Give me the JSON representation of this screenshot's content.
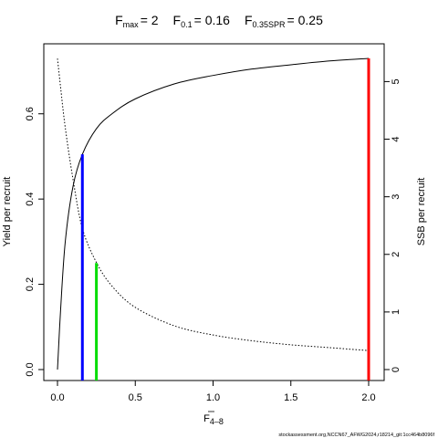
{
  "chart_data": {
    "type": "line",
    "title": {
      "fmax_sym": "F",
      "fmax_sub": "max",
      "fmax_val": "= 2",
      "f01_sym": "F",
      "f01_sub": "0.1",
      "f01_val": "= 0.16",
      "fspr_sym": "F",
      "fspr_sub": "0.35SPR",
      "fspr_val": "= 0.25"
    },
    "xlabel": {
      "main": "F",
      "sub": "4–8"
    },
    "ylabel_left": "Yield per recruit",
    "ylabel_right": "SSB per recruit",
    "xlim": [
      0,
      2
    ],
    "ylim_left": [
      0,
      0.73
    ],
    "ylim_right": [
      0,
      5.45
    ],
    "x_ticks": [
      "0.0",
      "0.5",
      "1.0",
      "1.5",
      "2.0"
    ],
    "y_ticks_left": [
      "0.0",
      "0.2",
      "0.4",
      "0.6"
    ],
    "y_ticks_right": [
      "0",
      "1",
      "2",
      "3",
      "4",
      "5"
    ],
    "series": [
      {
        "axis": "left",
        "style": "solid",
        "color": "#000000",
        "x": [
          0,
          0.02,
          0.05,
          0.1,
          0.16,
          0.25,
          0.35,
          0.5,
          0.75,
          1.0,
          1.25,
          1.5,
          1.75,
          2.0
        ],
        "y": [
          0.0,
          0.14,
          0.3,
          0.43,
          0.505,
          0.565,
          0.6,
          0.635,
          0.67,
          0.69,
          0.705,
          0.715,
          0.724,
          0.73
        ]
      },
      {
        "axis": "right",
        "style": "dotted",
        "color": "#000000",
        "x": [
          0,
          0.02,
          0.05,
          0.1,
          0.16,
          0.25,
          0.35,
          0.5,
          0.75,
          1.0,
          1.25,
          1.5,
          1.75,
          2.0
        ],
        "y": [
          5.4,
          4.9,
          4.2,
          3.3,
          2.45,
          1.86,
          1.45,
          1.08,
          0.76,
          0.6,
          0.5,
          0.43,
          0.38,
          0.33
        ]
      }
    ],
    "reference_lines": [
      {
        "x": 0.16,
        "y": 0.505,
        "color": "#0000ff"
      },
      {
        "x": 0.25,
        "y": 0.25,
        "color": "#00dd00"
      },
      {
        "x": 2.0,
        "y": 0.73,
        "color": "#ff0000"
      }
    ]
  },
  "footer": "stockassessment.org,NCCN67_AFWG2024,r18214_git:1cc464b8096f"
}
